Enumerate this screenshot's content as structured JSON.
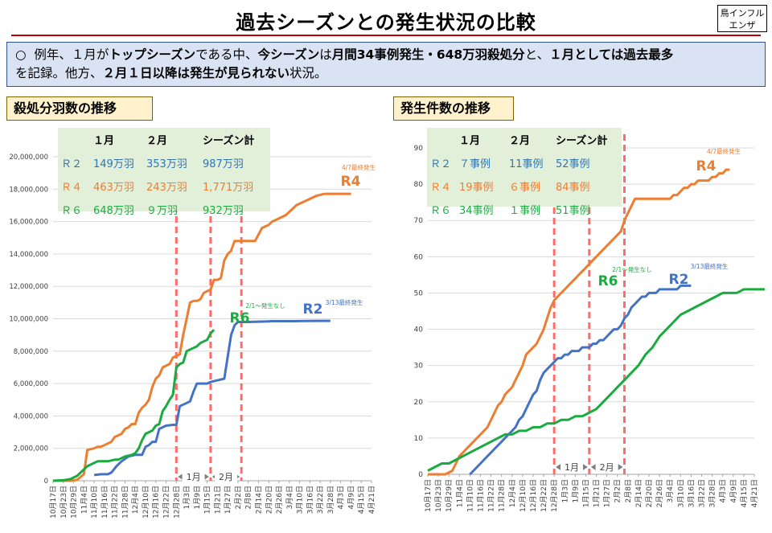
{
  "header": {
    "title": "過去シーズンとの発生状況の比較",
    "badge_line1": "鳥インフル",
    "badge_line2": "エンザ"
  },
  "summary": {
    "bullet": "○",
    "p1": "例年、１月が",
    "b1": "トップシーズン",
    "p2": "である中、",
    "b2": "今シーズン",
    "p3": "は",
    "b3": "月間34事例発生・648万羽殺処分",
    "p4": "と、",
    "b4": "１月としては過去最多",
    "p5": "を記録。他方、",
    "b5": "２月１日以降は発生が見られない",
    "p6": "状況。"
  },
  "colors": {
    "R2": "#4472c4",
    "R4": "#ed7d31",
    "R6": "#1aab40",
    "dash": "#ff6b6b"
  },
  "left_panel": {
    "label": "殺処分羽数の推移",
    "table": {
      "headers": [
        "",
        "１月",
        "２月",
        "シーズン計"
      ],
      "rows": [
        {
          "season": "Ｒ２",
          "jan": "149万羽",
          "feb": "353万羽",
          "total": "987万羽",
          "color": "#2e75b6"
        },
        {
          "season": "Ｒ４",
          "jan": "463万羽",
          "feb": "243万羽",
          "total": "1,771万羽",
          "color": "#ed7d31"
        },
        {
          "season": "Ｒ６",
          "jan": "648万羽",
          "feb": "９万羽",
          "total": "932万羽",
          "color": "#1aab40"
        }
      ]
    }
  },
  "right_panel": {
    "label": "発生件数の推移",
    "table": {
      "headers": [
        "",
        "１月",
        "２月",
        "シーズン計"
      ],
      "rows": [
        {
          "season": "Ｒ２",
          "jan": "７事例",
          "feb": "11事例",
          "total": "52事例",
          "color": "#2e75b6"
        },
        {
          "season": "Ｒ４",
          "jan": "19事例",
          "feb": "６事例",
          "total": "84事例",
          "color": "#ed7d31"
        },
        {
          "season": "Ｒ６",
          "jan": "34事例",
          "feb": "１事例",
          "total": "51事例",
          "color": "#1aab40"
        }
      ]
    }
  },
  "chart_data": [
    {
      "type": "line",
      "title": "殺処分羽数の推移",
      "x_ticks": [
        "10月17日",
        "10月23日",
        "10月29日",
        "11月4日",
        "11月10日",
        "11月16日",
        "11月22日",
        "11月28日",
        "12月4日",
        "12月10日",
        "12月16日",
        "12月22日",
        "12月28日",
        "1月3日",
        "1月9日",
        "1月15日",
        "1月21日",
        "1月27日",
        "2月2日",
        "2月8日",
        "2月14日",
        "2月20日",
        "2月26日",
        "3月4日",
        "3月10日",
        "3月16日",
        "3月22日",
        "3月28日",
        "4月3日",
        "4月9日",
        "4月15日",
        "4月21日"
      ],
      "ylim": [
        0,
        20000000
      ],
      "y_ticks": [
        0,
        2000000,
        4000000,
        6000000,
        8000000,
        10000000,
        12000000,
        14000000,
        16000000,
        18000000,
        20000000
      ],
      "y_tick_labels": [
        "0",
        "2,000,000",
        "4,000,000",
        "6,000,000",
        "8,000,000",
        "10,000,000",
        "12,000,000",
        "14,000,000",
        "16,000,000",
        "18,000,000",
        "20,000,000"
      ],
      "series": [
        {
          "name": "R2",
          "key": "R2",
          "x": [
            24,
            28,
            32,
            34,
            37,
            40,
            44,
            48,
            50,
            52,
            54,
            56,
            58,
            60,
            62,
            64,
            66,
            70,
            72,
            74,
            76,
            78,
            80,
            82,
            84,
            88,
            90,
            92,
            96,
            100,
            104,
            106,
            108,
            110,
            114,
            120,
            124,
            126,
            128,
            132,
            140,
            148,
            156,
            162
          ],
          "y": [
            350000,
            400000,
            400000,
            500000,
            900000,
            1200000,
            1500000,
            1600000,
            1600000,
            1600000,
            2100000,
            2200000,
            2400000,
            2400000,
            3200000,
            3300000,
            3400000,
            3450000,
            3450000,
            4600000,
            4700000,
            4800000,
            4900000,
            5500000,
            6000000,
            6000000,
            6000000,
            6100000,
            6200000,
            6300000,
            9000000,
            9600000,
            9800000,
            9800000,
            9800000,
            9820000,
            9830000,
            9840000,
            9850000,
            9850000,
            9850000,
            9860000,
            9870000,
            9870000
          ]
        },
        {
          "name": "R4",
          "key": "R4",
          "x": [
            0,
            8,
            10,
            14,
            18,
            20,
            24,
            26,
            28,
            30,
            32,
            34,
            36,
            38,
            40,
            42,
            44,
            46,
            48,
            50,
            52,
            54,
            56,
            58,
            60,
            62,
            64,
            66,
            68,
            70,
            72,
            74,
            76,
            78,
            80,
            82,
            84,
            86,
            88,
            90,
            92,
            94,
            96,
            98,
            100,
            102,
            104,
            106,
            108,
            110,
            112,
            114,
            116,
            118,
            120,
            122,
            124,
            126,
            128,
            130,
            132,
            134,
            136,
            138,
            140,
            142,
            144,
            146,
            148,
            150,
            152,
            154,
            156,
            158,
            160,
            162,
            164,
            166,
            168,
            170,
            172,
            174
          ],
          "y": [
            0,
            0,
            0,
            50000,
            400000,
            1900000,
            2000000,
            2100000,
            2100000,
            2200000,
            2300000,
            2400000,
            2700000,
            2800000,
            2900000,
            3200000,
            3300000,
            3500000,
            3500000,
            4200000,
            4500000,
            4700000,
            5000000,
            5800000,
            6300000,
            6500000,
            7000000,
            7100000,
            7200000,
            7600000,
            7700000,
            7800000,
            9000000,
            10000000,
            11000000,
            11100000,
            11100000,
            11200000,
            11600000,
            11700000,
            11800000,
            12400000,
            12400000,
            12500000,
            13600000,
            14000000,
            14200000,
            14800000,
            14800000,
            14800000,
            14800000,
            14800000,
            14800000,
            14800000,
            15200000,
            15600000,
            15700000,
            15800000,
            16000000,
            16100000,
            16200000,
            16300000,
            16400000,
            16600000,
            16800000,
            17000000,
            17100000,
            17200000,
            17300000,
            17400000,
            17500000,
            17600000,
            17650000,
            17700000,
            17710000,
            17710000,
            17710000,
            17710000,
            17710000,
            17710000,
            17710000,
            17710000
          ],
          "y_note": "R4 series truncated to last visible value"
        },
        {
          "name": "R6",
          "key": "R6",
          "x": [
            0,
            6,
            10,
            14,
            16,
            18,
            20,
            22,
            24,
            26,
            28,
            30,
            32,
            34,
            36,
            38,
            40,
            42,
            44,
            46,
            48,
            50,
            52,
            54,
            56,
            58,
            60,
            62,
            64,
            66,
            68,
            70,
            72,
            74,
            76,
            78,
            80,
            82,
            84,
            86,
            88,
            90,
            92,
            94
          ],
          "y": [
            0,
            30000,
            100000,
            300000,
            500000,
            700000,
            900000,
            1000000,
            1100000,
            1200000,
            1200000,
            1200000,
            1200000,
            1250000,
            1300000,
            1300000,
            1400000,
            1500000,
            1550000,
            1600000,
            1700000,
            2000000,
            2500000,
            2900000,
            3000000,
            3100000,
            3400000,
            3500000,
            4300000,
            4600000,
            5000000,
            5300000,
            7000000,
            7200000,
            7300000,
            8000000,
            8100000,
            8200000,
            8300000,
            8500000,
            8600000,
            8700000,
            9100000,
            9320000
          ]
        }
      ],
      "annotations": [
        {
          "label": "R4",
          "note": "4/7最終発生"
        },
        {
          "label": "R2",
          "note": "3/13最終発生"
        },
        {
          "label": "R6",
          "note": "2/1～発生なし"
        }
      ],
      "periods": [
        {
          "label": "1月"
        },
        {
          "label": "2月"
        }
      ]
    },
    {
      "type": "line",
      "title": "発生件数の推移",
      "x_ticks": [
        "10月17日",
        "10月23日",
        "10月29日",
        "11月4日",
        "11月10日",
        "11月16日",
        "11月22日",
        "11月28日",
        "12月4日",
        "12月10日",
        "12月16日",
        "12月22日",
        "12月28日",
        "1月3日",
        "1月9日",
        "1月15日",
        "1月21日",
        "1月27日",
        "2月2日",
        "2月8日",
        "2月14日",
        "2月20日",
        "2月26日",
        "3月4日",
        "3月10日",
        "3月16日",
        "3月22日",
        "3月28日",
        "4月3日",
        "4月9日",
        "4月15日",
        "4月21日"
      ],
      "ylim": [
        0,
        90
      ],
      "y_ticks": [
        0,
        10,
        20,
        30,
        40,
        50,
        60,
        70,
        80,
        90
      ],
      "y_tick_labels": [
        "0",
        "10",
        "20",
        "30",
        "40",
        "50",
        "60",
        "70",
        "80",
        "90"
      ],
      "series": [
        {
          "name": "R2",
          "key": "R2",
          "x": [
            24,
            26,
            28,
            30,
            32,
            34,
            36,
            38,
            40,
            42,
            44,
            46,
            48,
            50,
            52,
            54,
            56,
            58,
            60,
            62,
            64,
            66,
            68,
            70,
            72,
            74,
            76,
            78,
            80,
            82,
            84,
            86,
            88,
            90,
            92,
            94,
            96,
            98,
            100,
            102,
            104,
            106,
            108,
            110,
            112,
            114,
            116,
            118,
            120,
            122,
            124,
            126,
            128,
            130,
            132,
            134,
            136,
            138,
            140,
            142,
            144,
            146,
            148,
            150
          ],
          "y": [
            0,
            1,
            2,
            3,
            4,
            5,
            6,
            7,
            8,
            9,
            10,
            11,
            12,
            13,
            15,
            16,
            18,
            20,
            22,
            23,
            26,
            28,
            29,
            30,
            31,
            32,
            32,
            33,
            33,
            34,
            34,
            34,
            35,
            35,
            35,
            36,
            36,
            37,
            37,
            38,
            39,
            40,
            40,
            41,
            43,
            44,
            46,
            47,
            48,
            49,
            49,
            50,
            50,
            50,
            51,
            51,
            51,
            51,
            51,
            51,
            52,
            52,
            52,
            52
          ]
        },
        {
          "name": "R4",
          "key": "R4",
          "x": [
            0,
            10,
            14,
            16,
            18,
            20,
            22,
            24,
            26,
            28,
            30,
            32,
            34,
            36,
            38,
            40,
            42,
            44,
            46,
            48,
            50,
            52,
            54,
            56,
            58,
            60,
            62,
            64,
            66,
            68,
            70,
            72,
            74,
            76,
            78,
            80,
            82,
            84,
            86,
            88,
            90,
            92,
            94,
            96,
            98,
            100,
            102,
            104,
            106,
            108,
            110,
            112,
            114,
            116,
            118,
            120,
            122,
            124,
            126,
            128,
            130,
            132,
            134,
            136,
            138,
            140,
            142,
            144,
            146,
            148,
            150,
            152,
            154,
            156,
            158,
            160,
            162,
            164,
            166,
            168,
            170,
            172
          ],
          "y": [
            0,
            0,
            1,
            3,
            5,
            6,
            7,
            8,
            9,
            10,
            11,
            12,
            13,
            15,
            17,
            19,
            20,
            22,
            23,
            24,
            26,
            28,
            30,
            33,
            34,
            35,
            36,
            38,
            40,
            43,
            46,
            48,
            49,
            50,
            51,
            52,
            53,
            54,
            55,
            56,
            57,
            58,
            59,
            60,
            61,
            62,
            63,
            64,
            65,
            66,
            67,
            70,
            72,
            74,
            76,
            76,
            76,
            76,
            76,
            76,
            76,
            76,
            76,
            76,
            76,
            77,
            77,
            78,
            79,
            79,
            80,
            80,
            81,
            81,
            81,
            81,
            82,
            82,
            83,
            83,
            84,
            84
          ]
        },
        {
          "name": "R6",
          "key": "R6",
          "x": [
            0,
            4,
            8,
            12,
            16,
            20,
            24,
            28,
            32,
            36,
            40,
            44,
            48,
            52,
            56,
            60,
            64,
            68,
            72,
            76,
            80,
            84,
            88,
            92,
            96,
            100,
            104,
            108,
            112,
            116,
            120,
            124,
            128,
            132,
            136,
            140,
            144,
            148,
            152,
            156,
            160,
            164,
            168,
            172,
            176,
            180,
            184,
            188,
            192
          ],
          "y": [
            1,
            2,
            3,
            3,
            4,
            5,
            6,
            7,
            8,
            9,
            10,
            11,
            11,
            12,
            12,
            13,
            13,
            14,
            14,
            15,
            15,
            16,
            16,
            17,
            18,
            20,
            22,
            24,
            26,
            28,
            30,
            33,
            35,
            38,
            40,
            42,
            44,
            45,
            46,
            47,
            48,
            49,
            50,
            50,
            50,
            51,
            51,
            51,
            51
          ]
        }
      ],
      "annotations": [
        {
          "label": "R4",
          "note": "4/7最終発生"
        },
        {
          "label": "R2",
          "note": "3/13最終発生"
        },
        {
          "label": "R6",
          "note": "2/1～発生なし"
        }
      ],
      "periods": [
        {
          "label": "1月"
        },
        {
          "label": "2月"
        }
      ]
    }
  ]
}
